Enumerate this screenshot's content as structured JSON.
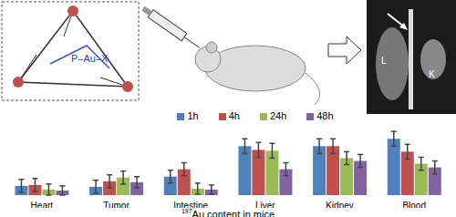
{
  "chart_data": {
    "type": "bar",
    "title": "197Au content in mice",
    "categories": [
      "Heart",
      "Tumor",
      "Intestine",
      "Liver",
      "Kidney",
      "Blood"
    ],
    "series": [
      {
        "name": "1h",
        "color": "#4f81bd",
        "values": [
          10,
          9,
          20,
          53,
          53,
          61
        ],
        "errors": [
          7,
          7,
          7,
          8,
          8,
          8
        ]
      },
      {
        "name": "4h",
        "color": "#c0504d",
        "values": [
          11,
          15,
          28,
          49,
          53,
          47
        ],
        "errors": [
          7,
          7,
          7,
          8,
          8,
          8
        ]
      },
      {
        "name": "24h",
        "color": "#9bbb59",
        "values": [
          6,
          19,
          7,
          48,
          40,
          34
        ],
        "errors": [
          6,
          7,
          6,
          8,
          7,
          7
        ]
      },
      {
        "name": "48h",
        "color": "#8064a2",
        "values": [
          5,
          14,
          6,
          28,
          37,
          30
        ],
        "errors": [
          5,
          6,
          5,
          7,
          7,
          7
        ]
      }
    ],
    "ylim": [
      0,
      75
    ],
    "tick_labels": "x",
    "legend": "top",
    "annotations": [
      "P–Au–X",
      "L",
      "K"
    ]
  }
}
